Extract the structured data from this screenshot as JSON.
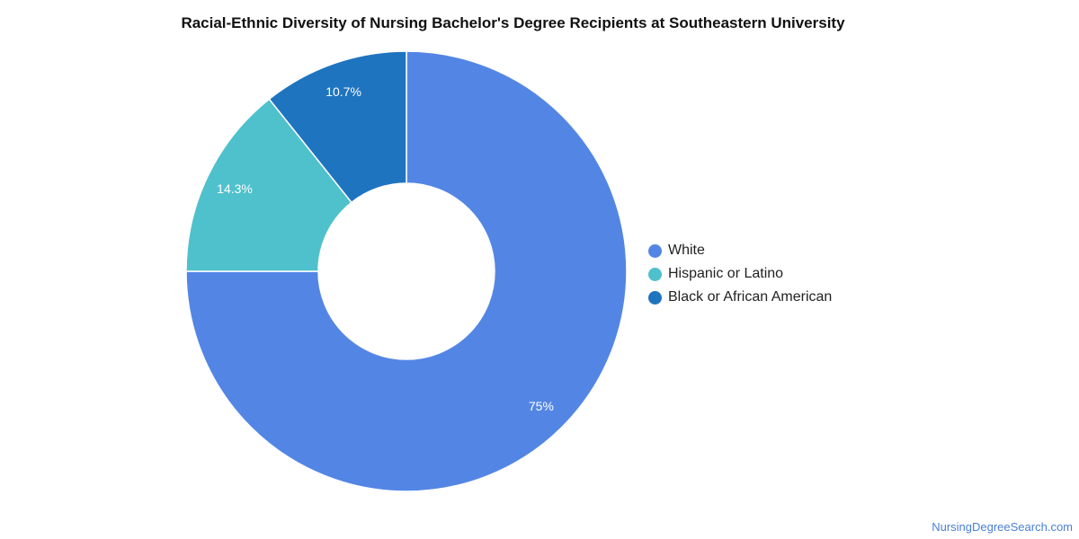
{
  "chart_data": {
    "type": "pie",
    "title": "Racial-Ethnic Diversity of Nursing Bachelor's Degree Recipients at Southeastern University",
    "variant": "donut",
    "slices": [
      {
        "label": "White",
        "value": 75,
        "display": "75%",
        "color": "#5386e4"
      },
      {
        "label": "Hispanic or Latino",
        "value": 14.3,
        "display": "14.3%",
        "color": "#4fc1cc"
      },
      {
        "label": "Black or African American",
        "value": 10.7,
        "display": "10.7%",
        "color": "#1f74bf"
      }
    ],
    "legend_position": "right"
  },
  "footer": {
    "source": "NursingDegreeSearch.com"
  }
}
